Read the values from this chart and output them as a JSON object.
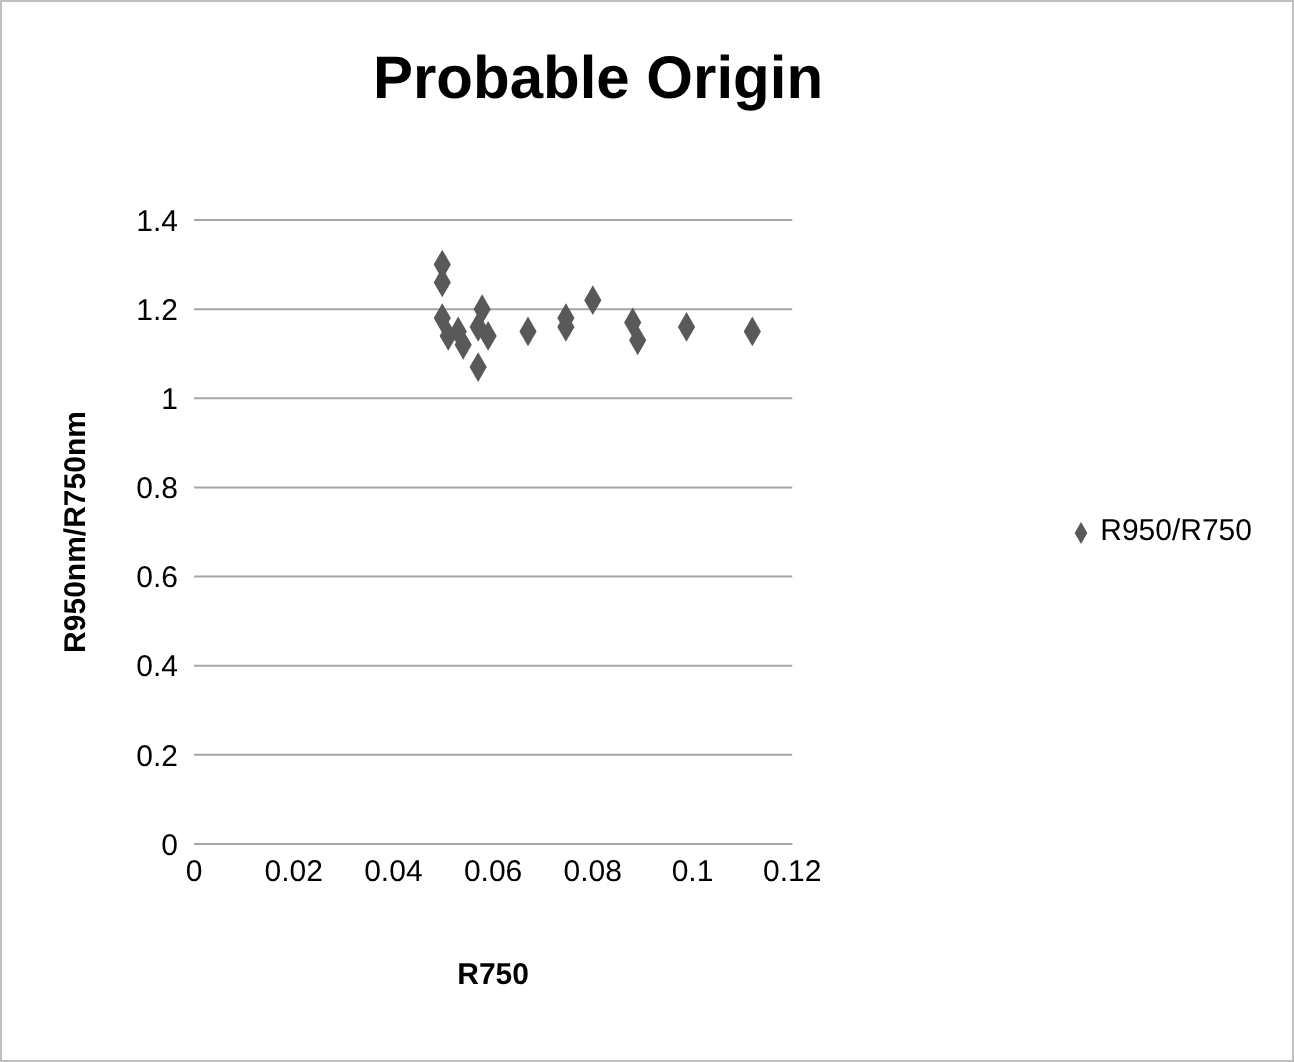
{
  "chart_data": {
    "type": "scatter",
    "title": "Probable Origin",
    "xlabel": "R750",
    "ylabel": "R950nm/R750nm",
    "x": [
      0.0498,
      0.0498,
      0.0498,
      0.051,
      0.053,
      0.054,
      0.057,
      0.0578,
      0.057,
      0.059,
      0.067,
      0.0746,
      0.0746,
      0.08,
      0.088,
      0.089,
      0.0988,
      0.112
    ],
    "series": [
      {
        "name": "R950/R750",
        "color": "#595959",
        "values": [
          1.3,
          1.26,
          1.18,
          1.14,
          1.15,
          1.12,
          1.07,
          1.2,
          1.16,
          1.14,
          1.15,
          1.18,
          1.16,
          1.22,
          1.17,
          1.13,
          1.16,
          1.15
        ]
      }
    ],
    "xlim": [
      0,
      0.12
    ],
    "xticks": [
      0,
      0.02,
      0.04,
      0.06,
      0.08,
      0.1,
      0.12
    ],
    "ylim": [
      0,
      1.4
    ],
    "yticks": [
      0,
      0.2,
      0.4,
      0.6,
      0.8,
      1,
      1.2,
      1.4
    ],
    "grid": "y",
    "legend": "right",
    "marker": "diamond"
  }
}
